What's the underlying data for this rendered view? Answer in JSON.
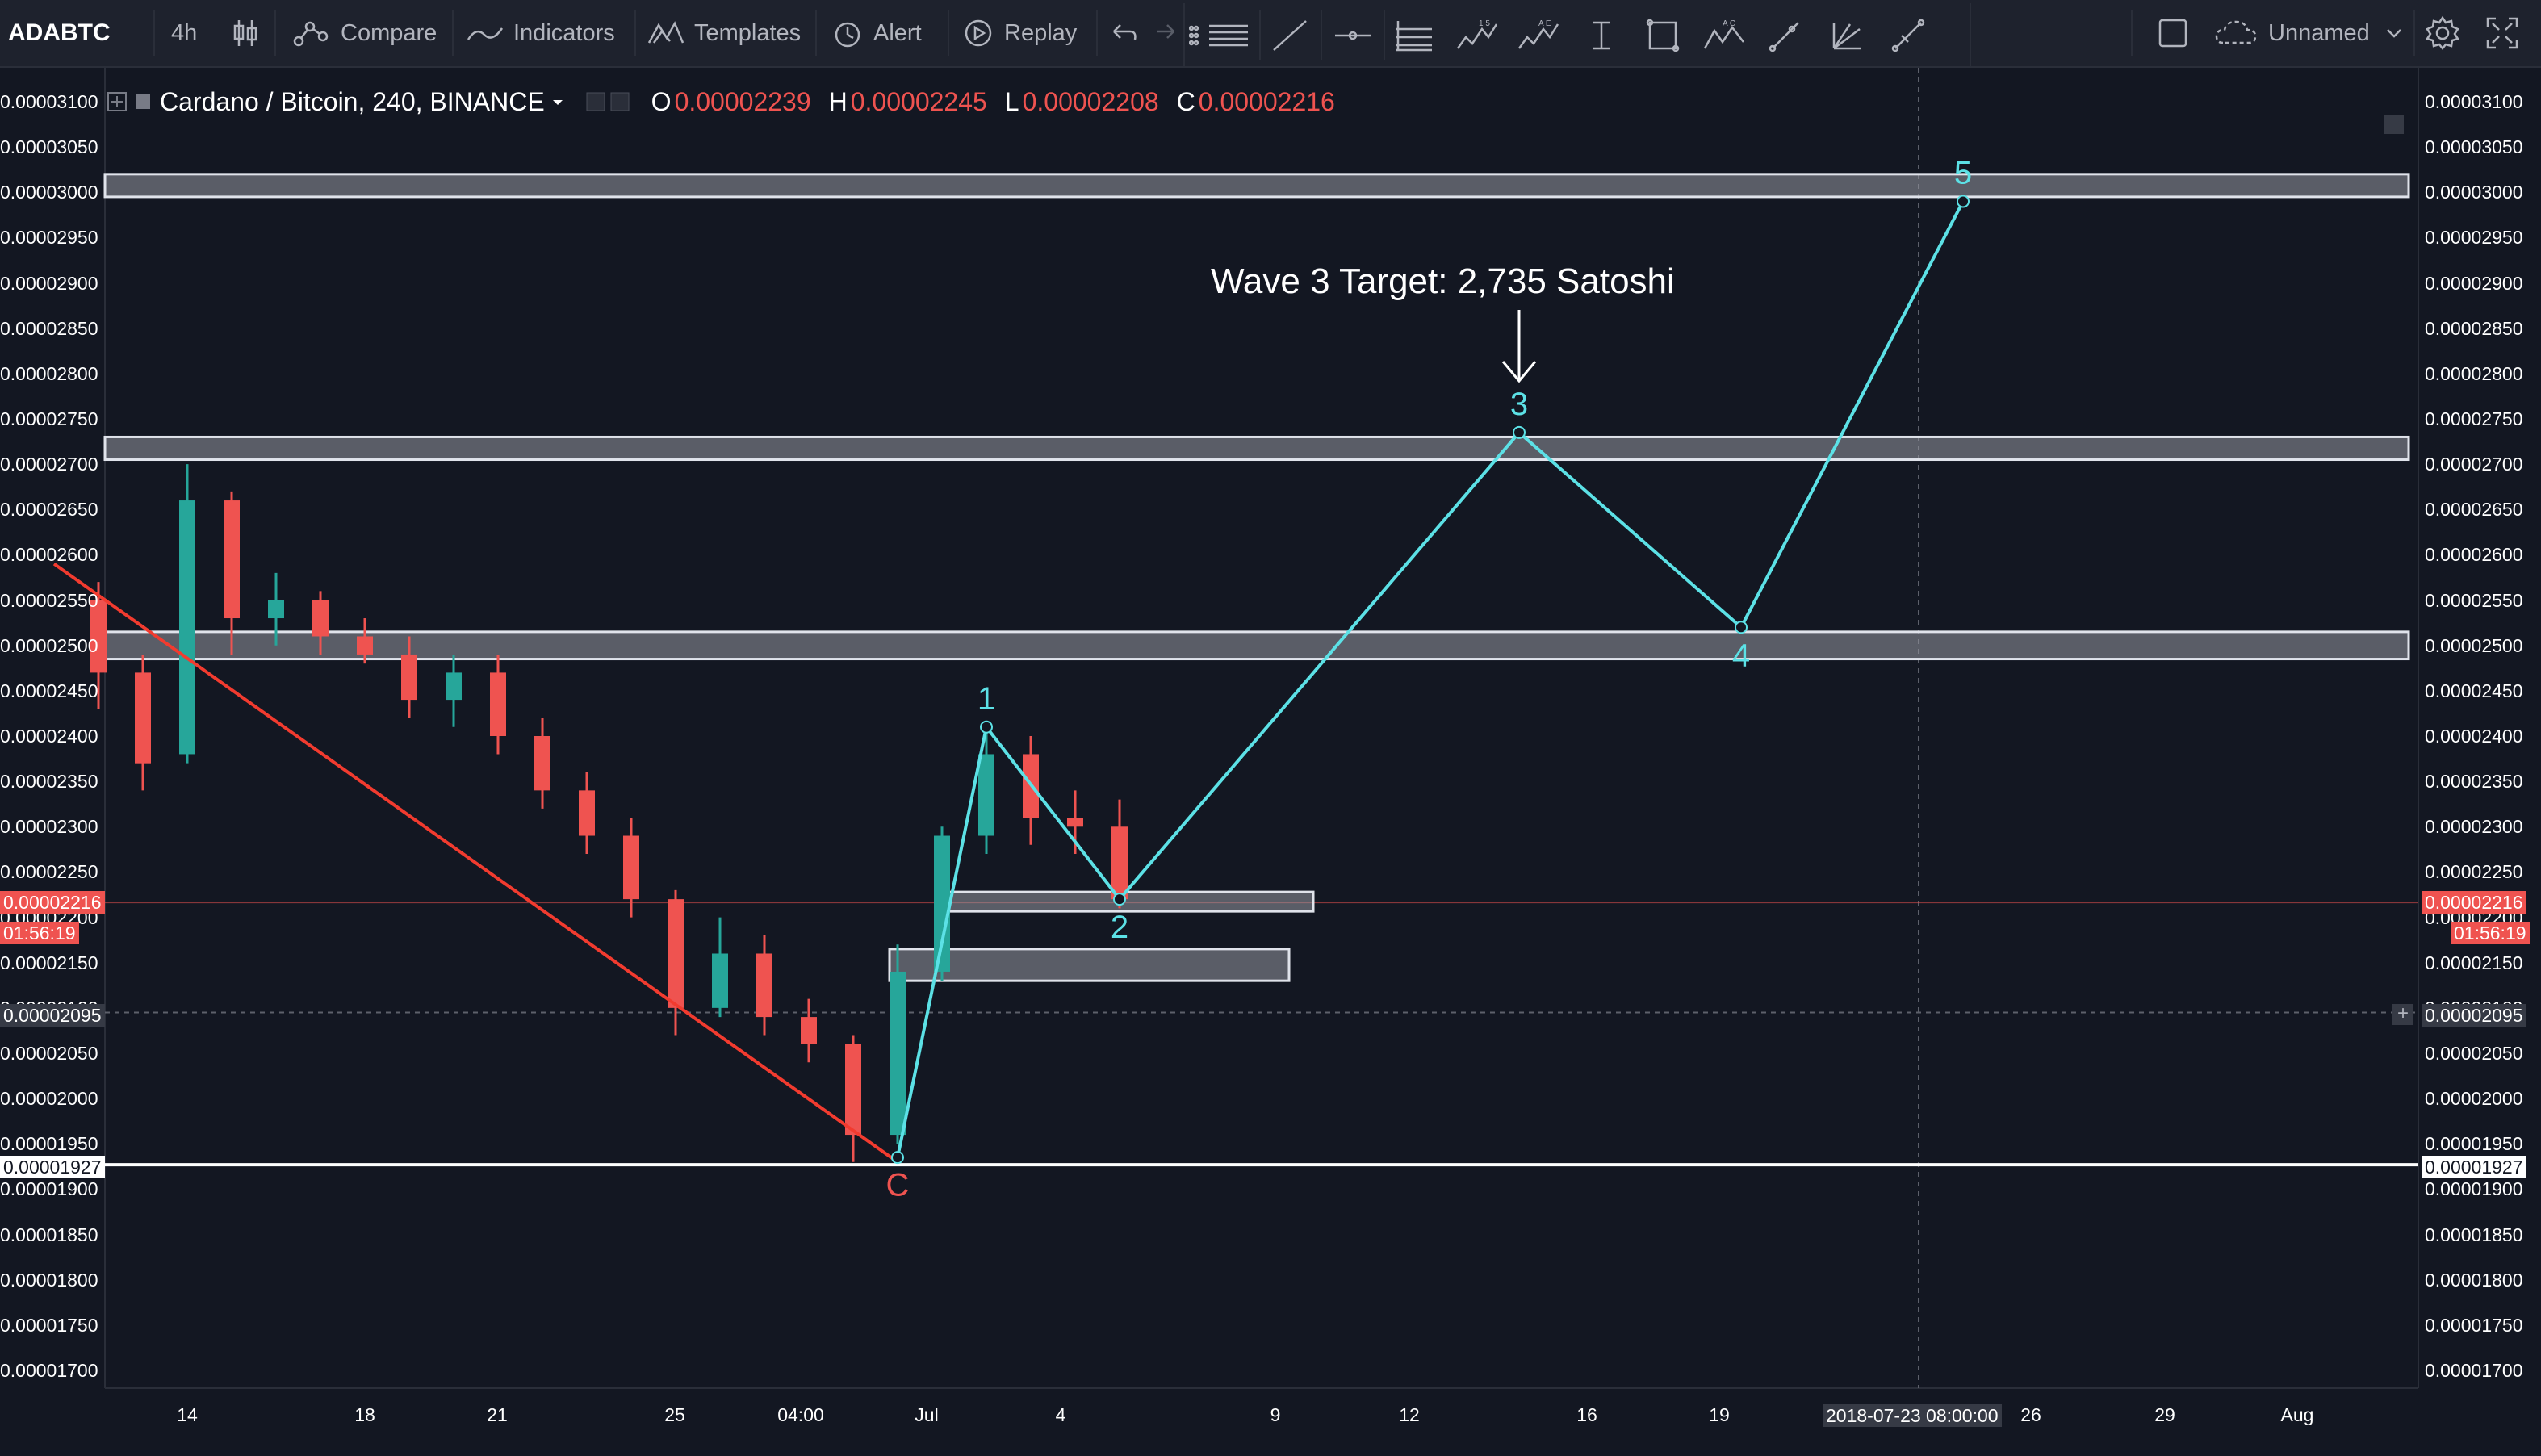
{
  "toolbar": {
    "symbol": "ADABTC",
    "interval": "4h",
    "compare": "Compare",
    "indicators": "Indicators",
    "templates": "Templates",
    "alert": "Alert",
    "replay": "Replay",
    "layout_name": "Unnamed"
  },
  "legend": {
    "title": "Cardano / Bitcoin, 240, BINANCE",
    "open_key": "O",
    "open": "0.00002239",
    "high_key": "H",
    "high": "0.00002245",
    "low_key": "L",
    "low": "0.00002208",
    "close_key": "C",
    "close": "0.00002216"
  },
  "annotation": {
    "text": "Wave 3 Target: 2,735 Satoshi"
  },
  "price_tags": {
    "last_price": "0.00002216",
    "countdown": "01:56:19",
    "crosshair_price": "0.00002095",
    "support_price": "0.00001927",
    "crosshair_date": "2018-07-23 08:00:00"
  },
  "colors": {
    "background": "#131722",
    "up": "#26a69a",
    "down": "#ef5350",
    "wave": "#5ce1e6",
    "trendline": "#f23b2f",
    "zone": "#9598a1"
  },
  "chart_data": {
    "type": "candlestick",
    "symbol": "ADABTC",
    "ylim": [
      1.67e-05,
      3.12e-05
    ],
    "y_ticks": [
      "0.00003100",
      "0.00003050",
      "0.00003000",
      "0.00002950",
      "0.00002900",
      "0.00002850",
      "0.00002800",
      "0.00002750",
      "0.00002700",
      "0.00002650",
      "0.00002600",
      "0.00002550",
      "0.00002500",
      "0.00002450",
      "0.00002400",
      "0.00002350",
      "0.00002300",
      "0.00002250",
      "0.00002200",
      "0.00002150",
      "0.00002100",
      "0.00002050",
      "0.00002000",
      "0.00001950",
      "0.00001900",
      "0.00001850",
      "0.00001800",
      "0.00001750",
      "0.00001700"
    ],
    "x_ticks": [
      "14",
      "18",
      "21",
      "25",
      "04:00",
      "Jul",
      "4",
      "9",
      "12",
      "16",
      "19",
      "26",
      "29",
      "Aug"
    ],
    "candles": [
      {
        "date": "2018-06-12",
        "o": 2.55e-05,
        "h": 2.57e-05,
        "l": 2.43e-05,
        "c": 2.47e-05
      },
      {
        "date": "2018-06-13",
        "o": 2.47e-05,
        "h": 2.49e-05,
        "l": 2.34e-05,
        "c": 2.37e-05
      },
      {
        "date": "2018-06-14",
        "o": 2.38e-05,
        "h": 2.7e-05,
        "l": 2.37e-05,
        "c": 2.66e-05
      },
      {
        "date": "2018-06-15",
        "o": 2.66e-05,
        "h": 2.67e-05,
        "l": 2.49e-05,
        "c": 2.53e-05
      },
      {
        "date": "2018-06-16",
        "o": 2.53e-05,
        "h": 2.58e-05,
        "l": 2.5e-05,
        "c": 2.55e-05
      },
      {
        "date": "2018-06-17",
        "o": 2.55e-05,
        "h": 2.56e-05,
        "l": 2.49e-05,
        "c": 2.51e-05
      },
      {
        "date": "2018-06-18",
        "o": 2.51e-05,
        "h": 2.53e-05,
        "l": 2.48e-05,
        "c": 2.49e-05
      },
      {
        "date": "2018-06-19",
        "o": 2.49e-05,
        "h": 2.51e-05,
        "l": 2.42e-05,
        "c": 2.44e-05
      },
      {
        "date": "2018-06-20",
        "o": 2.44e-05,
        "h": 2.49e-05,
        "l": 2.41e-05,
        "c": 2.47e-05
      },
      {
        "date": "2018-06-21",
        "o": 2.47e-05,
        "h": 2.49e-05,
        "l": 2.38e-05,
        "c": 2.4e-05
      },
      {
        "date": "2018-06-22",
        "o": 2.4e-05,
        "h": 2.42e-05,
        "l": 2.32e-05,
        "c": 2.34e-05
      },
      {
        "date": "2018-06-23",
        "o": 2.34e-05,
        "h": 2.36e-05,
        "l": 2.27e-05,
        "c": 2.29e-05
      },
      {
        "date": "2018-06-24",
        "o": 2.29e-05,
        "h": 2.31e-05,
        "l": 2.2e-05,
        "c": 2.22e-05
      },
      {
        "date": "2018-06-25",
        "o": 2.22e-05,
        "h": 2.23e-05,
        "l": 2.07e-05,
        "c": 2.1e-05
      },
      {
        "date": "2018-06-26",
        "o": 2.1e-05,
        "h": 2.2e-05,
        "l": 2.09e-05,
        "c": 2.16e-05
      },
      {
        "date": "2018-06-27",
        "o": 2.16e-05,
        "h": 2.18e-05,
        "l": 2.07e-05,
        "c": 2.09e-05
      },
      {
        "date": "2018-06-28",
        "o": 2.09e-05,
        "h": 2.11e-05,
        "l": 2.04e-05,
        "c": 2.06e-05
      },
      {
        "date": "2018-06-29",
        "o": 2.06e-05,
        "h": 2.07e-05,
        "l": 1.93e-05,
        "c": 1.96e-05
      },
      {
        "date": "2018-06-30",
        "o": 1.96e-05,
        "h": 2.17e-05,
        "l": 1.95e-05,
        "c": 2.14e-05
      },
      {
        "date": "2018-07-01",
        "o": 2.14e-05,
        "h": 2.3e-05,
        "l": 2.13e-05,
        "c": 2.29e-05
      },
      {
        "date": "2018-07-02",
        "o": 2.29e-05,
        "h": 2.41e-05,
        "l": 2.27e-05,
        "c": 2.38e-05
      },
      {
        "date": "2018-07-03",
        "o": 2.38e-05,
        "h": 2.4e-05,
        "l": 2.28e-05,
        "c": 2.31e-05
      },
      {
        "date": "2018-07-04",
        "o": 2.31e-05,
        "h": 2.34e-05,
        "l": 2.27e-05,
        "c": 2.3e-05
      },
      {
        "date": "2018-07-05",
        "o": 2.3e-05,
        "h": 2.33e-05,
        "l": 2.21e-05,
        "c": 2.22e-05
      }
    ],
    "horizontal_zones": [
      {
        "low": 2.995e-05,
        "high": 3.02e-05
      },
      {
        "low": 2.705e-05,
        "high": 2.73e-05
      },
      {
        "low": 2.485e-05,
        "high": 2.515e-05
      },
      {
        "low": 2.21e-05,
        "high": 2.228e-05
      },
      {
        "low": 2.13e-05,
        "high": 2.165e-05
      }
    ],
    "trendline": [
      {
        "date": "2018-06-11",
        "price": 2.59e-05
      },
      {
        "date": "2018-06-30",
        "price": 1.93e-05
      }
    ],
    "support_line": 1.927e-05,
    "wave_path": [
      {
        "label": "",
        "date": "2018-06-30",
        "price": 1.935e-05
      },
      {
        "label": "1",
        "date": "2018-07-02",
        "price": 2.41e-05
      },
      {
        "label": "2",
        "date": "2018-07-05",
        "price": 2.22e-05
      },
      {
        "label": "3",
        "date": "2018-07-14",
        "price": 2.735e-05
      },
      {
        "label": "4",
        "date": "2018-07-19",
        "price": 2.52e-05
      },
      {
        "label": "5",
        "date": "2018-07-24",
        "price": 2.99e-05
      }
    ],
    "wave_c_label": "C"
  }
}
